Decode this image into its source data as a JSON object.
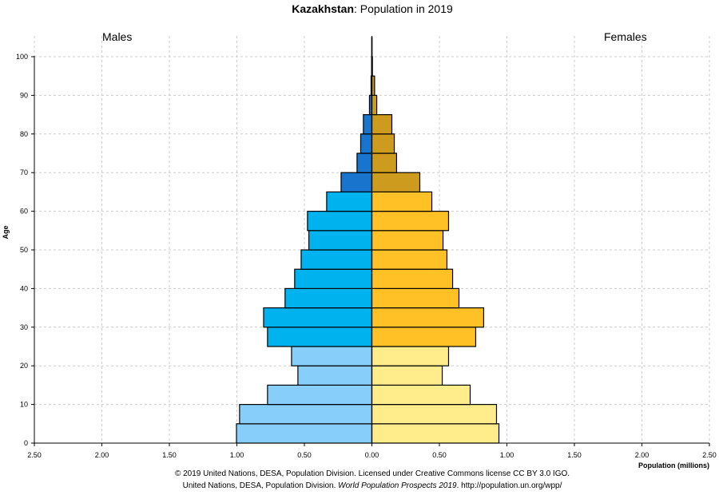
{
  "chart_data": {
    "type": "bar",
    "orientation": "horizontal-pyramid",
    "title_country": "Kazakhstan",
    "title_rest": ": Population in 2019",
    "left_label": "Males",
    "right_label": "Females",
    "xlabel": "Population (millions)",
    "ylabel": "Age",
    "xlim": [
      -2.5,
      2.5
    ],
    "ylim": [
      0,
      105
    ],
    "xticks": [
      "2.50",
      "2.00",
      "1.50",
      "1.00",
      "0.50",
      "0.00",
      "0.50",
      "1.00",
      "1.50",
      "2.00",
      "2.50"
    ],
    "yticks": [
      "0",
      "10",
      "20",
      "30",
      "40",
      "50",
      "60",
      "70",
      "80",
      "90",
      "100"
    ],
    "grid": true,
    "categories": [
      "0-4",
      "5-9",
      "10-14",
      "15-19",
      "20-24",
      "25-29",
      "30-34",
      "35-39",
      "40-44",
      "45-49",
      "50-54",
      "55-59",
      "60-64",
      "65-69",
      "70-74",
      "75-79",
      "80-84",
      "85-89",
      "90-94",
      "95-99",
      "100+"
    ],
    "series": [
      {
        "name": "Males",
        "values": [
          1.003,
          0.98,
          0.773,
          0.548,
          0.595,
          0.773,
          0.802,
          0.643,
          0.572,
          0.524,
          0.467,
          0.477,
          0.335,
          0.228,
          0.11,
          0.083,
          0.063,
          0.018,
          0.006,
          0.002,
          0.001
        ]
      },
      {
        "name": "Females",
        "values": [
          0.941,
          0.923,
          0.728,
          0.521,
          0.568,
          0.769,
          0.828,
          0.645,
          0.598,
          0.556,
          0.527,
          0.568,
          0.444,
          0.355,
          0.183,
          0.166,
          0.148,
          0.036,
          0.02,
          0.004,
          0.001
        ]
      }
    ],
    "colors": {
      "male_young": "#87CEFA",
      "male_working": "#00B2EE",
      "male_old": "#1874CD",
      "female_young": "#FFEC8B",
      "female_working": "#FFC125",
      "female_old": "#CD9B1D"
    },
    "age_groups": {
      "young_until_index": 4,
      "working_until_index": 12
    }
  },
  "credits": {
    "line1": "© 2019 United Nations, DESA, Population Division. Licensed under Creative Commons license CC BY 3.0 IGO.",
    "line2_pre": "United Nations, DESA, Population Division. ",
    "line2_italic": "World Population Prospects 2019",
    "line2_post": ". http://population.un.org/wpp/"
  }
}
